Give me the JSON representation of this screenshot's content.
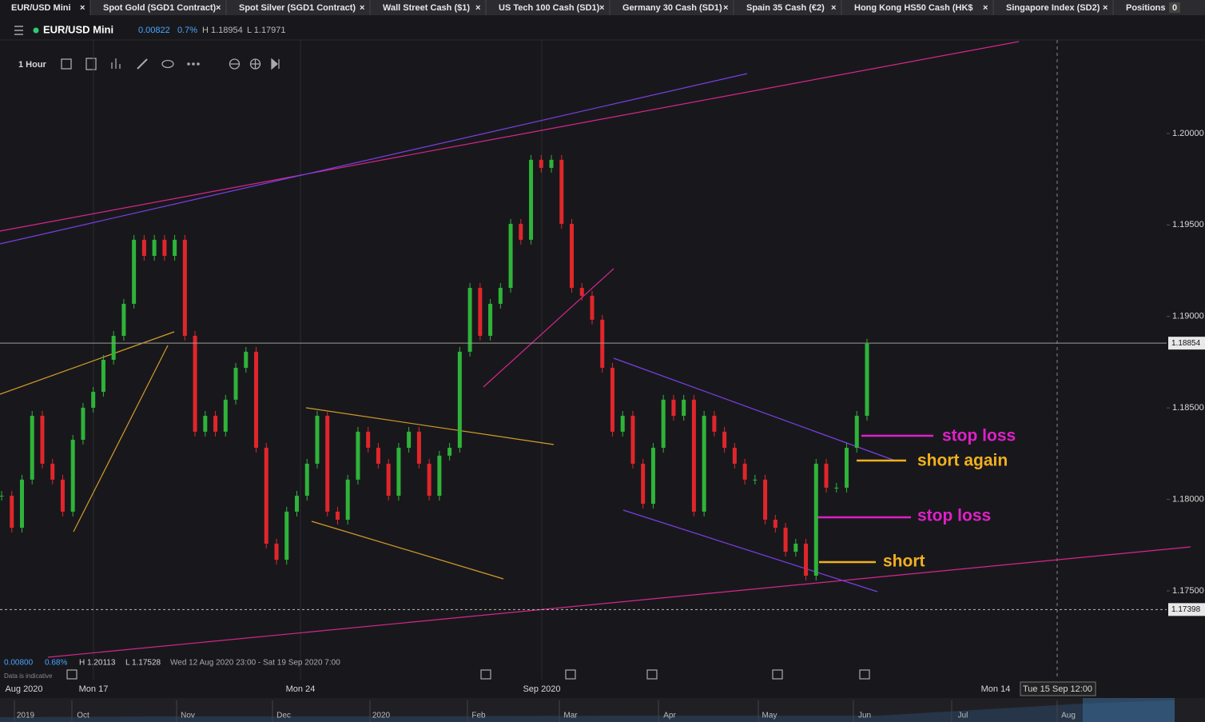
{
  "tabs": [
    "EUR/USD Mini",
    "Spot Gold (SGD1 Contract)",
    "Spot Silver (SGD1 Contract)",
    "Wall Street Cash ($1)",
    "US Tech 100 Cash (SD1)",
    "Germany 30 Cash (SD1)",
    "Spain 35 Cash (€2)",
    "Hong Kong HS50 Cash (HK$",
    "Singapore Index (SD2)",
    "Positions"
  ],
  "positions_count": "0",
  "header": {
    "symbol": "EUR/USD Mini",
    "change": "0.00822",
    "change_pct": "0.7%",
    "high": "H 1.18954",
    "low": "L 1.17971"
  },
  "toolbar": {
    "interval": "1 Hour"
  },
  "chart_data": {
    "type": "candlestick",
    "ylim": [
      1.17146,
      1.20511
    ],
    "yticks": [
      {
        "value": 1.2,
        "label": "1.20000"
      },
      {
        "value": 1.195,
        "label": "1.19500"
      },
      {
        "value": 1.19,
        "label": "1.19000"
      },
      {
        "value": 1.185,
        "label": "1.18500"
      },
      {
        "value": 1.18,
        "label": "1.18000"
      },
      {
        "value": 1.175,
        "label": "1.17500"
      }
    ],
    "closes": [
      1.1802,
      1.17845,
      1.18108,
      1.18457,
      1.18195,
      1.18108,
      1.17933,
      1.18326,
      1.18501,
      1.18588,
      1.18763,
      1.18894,
      1.19069,
      1.19419,
      1.19331,
      1.19419,
      1.19331,
      1.19419,
      1.18894,
      1.1837,
      1.18457,
      1.1837,
      1.18545,
      1.18719,
      1.18807,
      1.18282,
      1.17758,
      1.1767,
      1.17933,
      1.1802,
      1.18195,
      1.18457,
      1.17933,
      1.17889,
      1.18108,
      1.1837,
      1.18282,
      1.18195,
      1.1802,
      1.18282,
      1.1837,
      1.18195,
      1.1802,
      1.18239,
      1.18282,
      1.18807,
      1.19156,
      1.18894,
      1.19069,
      1.19156,
      1.19506,
      1.19419,
      1.19856,
      1.19812,
      1.19856,
      1.19506,
      1.19156,
      1.19113,
      1.18982,
      1.18719,
      1.1837,
      1.18457,
      1.18195,
      1.17976,
      1.18282,
      1.18545,
      1.18457,
      1.18545,
      1.17933,
      1.18457,
      1.1837,
      1.18282,
      1.18195,
      1.18108,
      1.18108,
      1.17889,
      1.17845,
      1.17714,
      1.17758,
      1.17583,
      1.18195,
      1.18064,
      1.18064,
      1.18282,
      1.18457,
      1.18851
    ],
    "current_price": {
      "value": 1.18854,
      "label": "1.18854"
    },
    "low_marker": {
      "value": 1.17398,
      "label": "1.17398"
    },
    "annotations": [
      "stop loss",
      "short again",
      "stop loss",
      "short"
    ],
    "x_labels": [
      "Aug 2020",
      "Mon 17",
      "Mon 24",
      "Sep 2020",
      "Mon 14"
    ],
    "crosshair_label": "Tue 15 Sep 12:00",
    "range_info": {
      "change": "0.00800",
      "change_pct": "0.68%",
      "high": "H 1.20113",
      "low": "L 1.17528",
      "period": "Wed 12 Aug 2020 23:00 - Sat 19 Sep 2020 7:00",
      "note": "Data is indicative"
    },
    "navigator_labels": [
      "2019",
      "Oct",
      "Nov",
      "Dec",
      "2020",
      "Feb",
      "Mar",
      "Apr",
      "May",
      "Jun",
      "Jul",
      "Aug"
    ]
  }
}
